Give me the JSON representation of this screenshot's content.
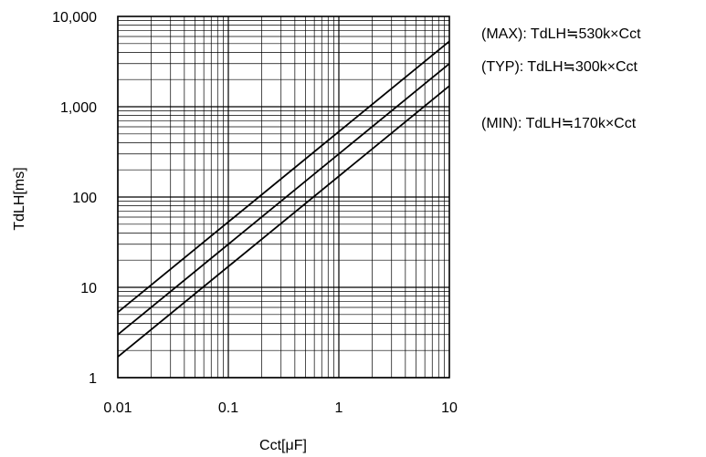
{
  "chart_data": {
    "type": "line",
    "xscale": "log",
    "yscale": "log",
    "xlim": [
      0.01,
      10
    ],
    "ylim": [
      1,
      10000
    ],
    "grid": true,
    "xlabel": "Cct[μF]",
    "ylabel": "TdLH[ms]",
    "x_ticks": [
      {
        "value": 0.01,
        "label": "0.01"
      },
      {
        "value": 0.1,
        "label": "0.1"
      },
      {
        "value": 1,
        "label": "1"
      },
      {
        "value": 10,
        "label": "10"
      }
    ],
    "y_ticks": [
      {
        "value": 1,
        "label": "1"
      },
      {
        "value": 10,
        "label": "10"
      },
      {
        "value": 100,
        "label": "100"
      },
      {
        "value": 1000,
        "label": "1,000"
      },
      {
        "value": 10000,
        "label": "10,000"
      }
    ],
    "series": [
      {
        "key": "max",
        "x": [
          0.01,
          10
        ],
        "y": [
          5.3,
          5300
        ],
        "color": "#000000"
      },
      {
        "key": "typ",
        "x": [
          0.01,
          10
        ],
        "y": [
          3.0,
          3000
        ],
        "color": "#000000"
      },
      {
        "key": "min",
        "x": [
          0.01,
          10
        ],
        "y": [
          1.7,
          1700
        ],
        "color": "#000000"
      }
    ],
    "annotations": [
      {
        "key": "max",
        "text": "(MAX): TdLH≒530k×Cct"
      },
      {
        "key": "typ",
        "text": "(TYP): TdLH≒300k×Cct"
      },
      {
        "key": "min",
        "text": "(MIN): TdLH≒170k×Cct"
      }
    ]
  }
}
